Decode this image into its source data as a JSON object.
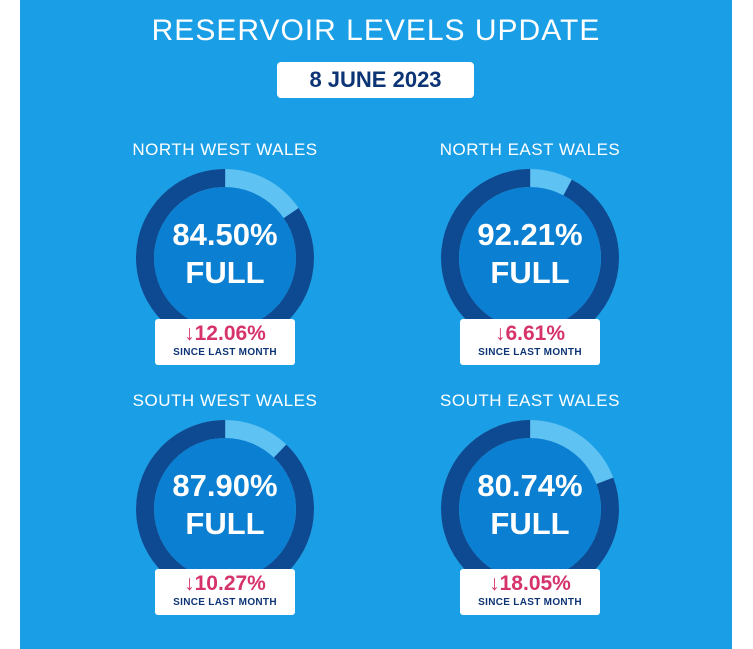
{
  "title": "RESERVOIR LEVELS UPDATE",
  "date": "8 JUNE 2023",
  "colors": {
    "background": "#1a9ee6",
    "ring_filled": "#0d4a92",
    "ring_remaining": "#5ec2f2",
    "gauge_inner": "#0b7fd1",
    "decrease": "#d6336c",
    "navy_text": "#0d3575"
  },
  "regions": [
    {
      "name": "NORTH WEST WALES",
      "level_text": "84.50%",
      "level": 84.5,
      "full_label": "FULL",
      "change_arrow": "↓",
      "change": "12.06%",
      "since": "SINCE LAST MONTH"
    },
    {
      "name": "NORTH EAST WALES",
      "level_text": "92.21%",
      "level": 92.21,
      "full_label": "FULL",
      "change_arrow": "↓",
      "change": "6.61%",
      "since": "SINCE LAST MONTH"
    },
    {
      "name": "SOUTH WEST WALES",
      "level_text": "87.90%",
      "level": 87.9,
      "full_label": "FULL",
      "change_arrow": "↓",
      "change": "10.27%",
      "since": "SINCE LAST MONTH"
    },
    {
      "name": "SOUTH EAST WALES",
      "level_text": "80.74%",
      "level": 80.74,
      "full_label": "FULL",
      "change_arrow": "↓",
      "change": "18.05%",
      "since": "SINCE LAST MONTH"
    }
  ]
}
